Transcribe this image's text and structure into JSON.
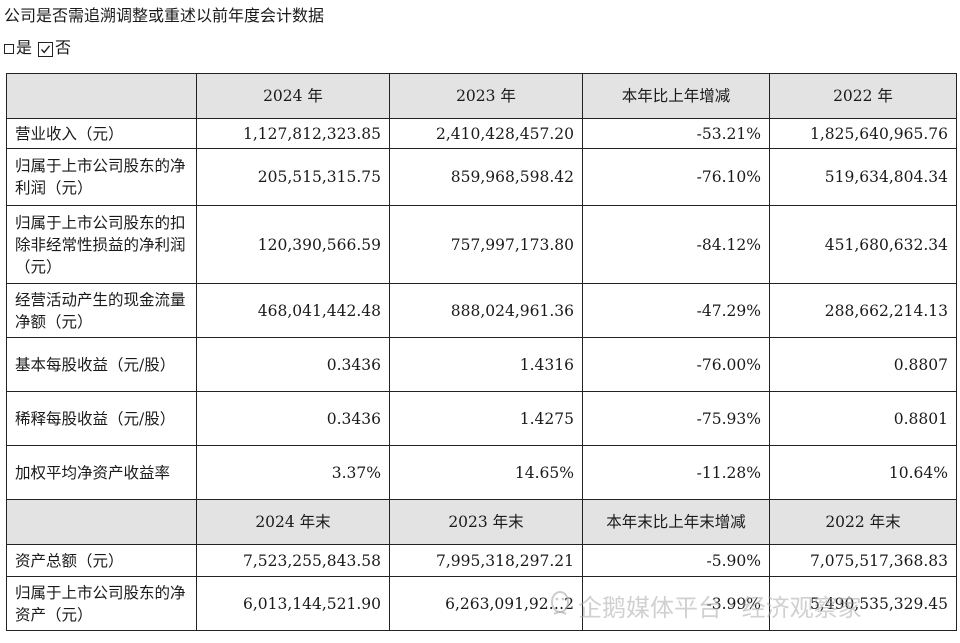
{
  "question": "公司是否需追溯调整或重述以前年度会计数据",
  "options": {
    "yes_label": "是",
    "no_label": "否",
    "selected": "否"
  },
  "table": {
    "header1": [
      "2024 年",
      "2023 年",
      "本年比上年增减",
      "2022 年"
    ],
    "rows1": [
      {
        "label": "营业收入（元）",
        "values": [
          "1,127,812,323.85",
          "2,410,428,457.20",
          "-53.21%",
          "1,825,640,965.76"
        ]
      },
      {
        "label": "归属于上市公司股东的净利润（元）",
        "values": [
          "205,515,315.75",
          "859,968,598.42",
          "-76.10%",
          "519,634,804.34"
        ]
      },
      {
        "label": "归属于上市公司股东的扣除非经常性损益的净利润（元）",
        "values": [
          "120,390,566.59",
          "757,997,173.80",
          "-84.12%",
          "451,680,632.34"
        ]
      },
      {
        "label": "经营活动产生的现金流量净额（元）",
        "values": [
          "468,041,442.48",
          "888,024,961.36",
          "-47.29%",
          "288,662,214.13"
        ]
      },
      {
        "label": "基本每股收益（元/股）",
        "values": [
          "0.3436",
          "1.4316",
          "-76.00%",
          "0.8807"
        ]
      },
      {
        "label": "稀释每股收益（元/股）",
        "values": [
          "0.3436",
          "1.4275",
          "-75.93%",
          "0.8801"
        ]
      },
      {
        "label": "加权平均净资产收益率",
        "values": [
          "3.37%",
          "14.65%",
          "-11.28%",
          "10.64%"
        ]
      }
    ],
    "header2": [
      "2024 年末",
      "2023 年末",
      "本年末比上年末增减",
      "2022 年末"
    ],
    "rows2": [
      {
        "label": "资产总额（元）",
        "values": [
          "7,523,255,843.58",
          "7,995,318,297.21",
          "-5.90%",
          "7,075,517,368.83"
        ]
      },
      {
        "label": "归属于上市公司股东的净资产（元）",
        "values": [
          "6,013,144,521.90",
          "6,263,091,92…2",
          "-3.99%",
          "5,490,535,329.45"
        ]
      }
    ]
  },
  "watermark": {
    "brand": "企鹅媒体平台",
    "separator": "·",
    "author": "经济观察家"
  },
  "colors": {
    "header_bg": "#e3e3e3",
    "border": "#222222",
    "text": "#1a1a1a"
  }
}
